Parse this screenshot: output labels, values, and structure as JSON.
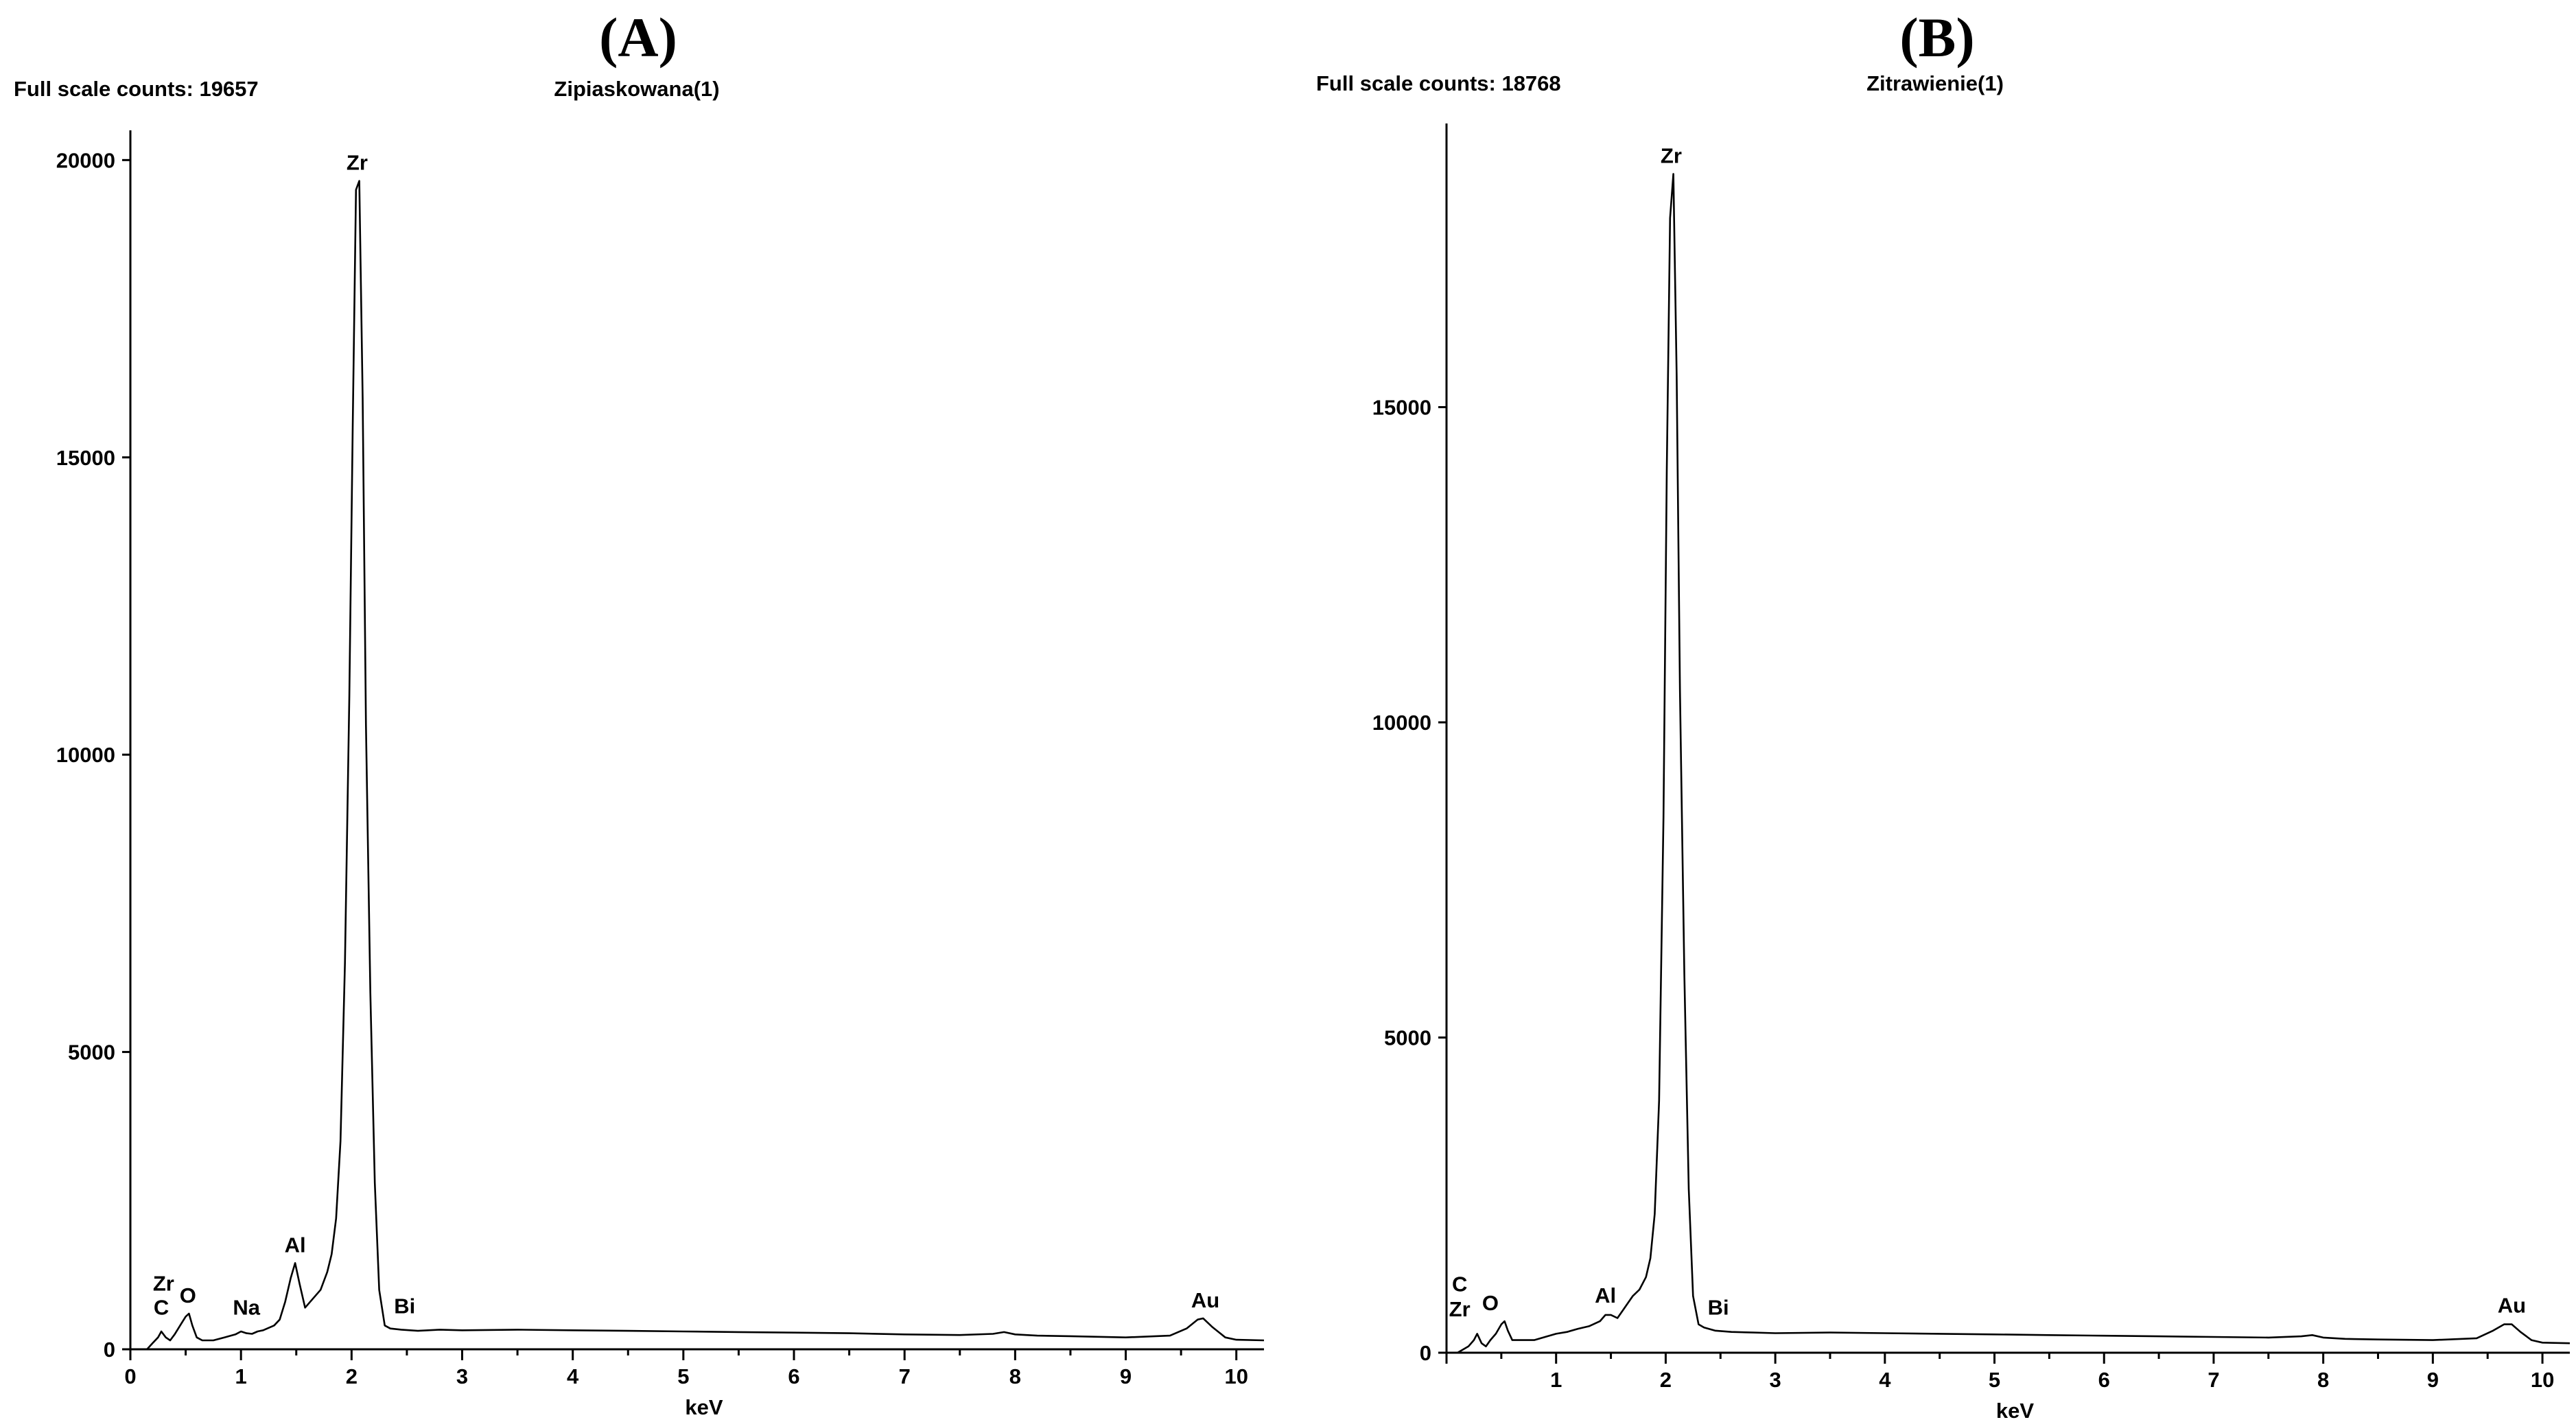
{
  "chart_data": [
    {
      "type": "line",
      "panel_label": "(A)",
      "header_left": "Full scale counts: 19657",
      "title": "Zipiaskowana(1)",
      "xlabel": "keV",
      "ylabel": "",
      "xlim": [
        0,
        10.25
      ],
      "ylim": [
        0,
        20500
      ],
      "xticks": [
        0,
        1,
        2,
        3,
        4,
        5,
        6,
        7,
        8,
        9,
        10
      ],
      "yticks": [
        0,
        5000,
        10000,
        15000,
        20000
      ],
      "x": [
        0.0,
        0.15,
        0.2,
        0.25,
        0.28,
        0.32,
        0.36,
        0.4,
        0.45,
        0.5,
        0.53,
        0.56,
        0.6,
        0.65,
        0.75,
        0.85,
        0.95,
        1.0,
        1.05,
        1.1,
        1.15,
        1.2,
        1.3,
        1.35,
        1.4,
        1.45,
        1.49,
        1.53,
        1.58,
        1.65,
        1.72,
        1.78,
        1.82,
        1.86,
        1.9,
        1.94,
        1.98,
        2.01,
        2.04,
        2.07,
        2.1,
        2.13,
        2.17,
        2.21,
        2.25,
        2.3,
        2.35,
        2.45,
        2.6,
        2.8,
        3.0,
        3.5,
        4.0,
        4.5,
        5.0,
        5.5,
        6.0,
        6.5,
        7.0,
        7.5,
        7.8,
        7.9,
        8.0,
        8.2,
        8.5,
        9.0,
        9.4,
        9.55,
        9.65,
        9.7,
        9.78,
        9.9,
        10.0,
        10.25
      ],
      "y": [
        0,
        0,
        100,
        200,
        300,
        200,
        150,
        250,
        400,
        550,
        600,
        400,
        200,
        150,
        150,
        200,
        250,
        300,
        270,
        260,
        300,
        320,
        400,
        500,
        800,
        1200,
        1450,
        1100,
        700,
        850,
        1000,
        1300,
        1600,
        2200,
        3500,
        6500,
        11000,
        15500,
        19500,
        19650,
        16000,
        10500,
        6000,
        2800,
        1000,
        400,
        350,
        330,
        310,
        330,
        320,
        330,
        320,
        310,
        300,
        290,
        280,
        270,
        250,
        240,
        260,
        290,
        250,
        230,
        220,
        200,
        230,
        350,
        500,
        520,
        380,
        200,
        160,
        150
      ],
      "annotations": [
        {
          "text": "Zr",
          "x": 2.05,
          "y": 19650
        },
        {
          "text": "Zr",
          "x": 0.3,
          "y": 800
        },
        {
          "text": "C",
          "x": 0.28,
          "y": 400
        },
        {
          "text": "O",
          "x": 0.52,
          "y": 600
        },
        {
          "text": "Na",
          "x": 1.05,
          "y": 400
        },
        {
          "text": "Al",
          "x": 1.49,
          "y": 1450
        },
        {
          "text": "Bi",
          "x": 2.48,
          "y": 420
        },
        {
          "text": "Au",
          "x": 9.72,
          "y": 520
        }
      ]
    },
    {
      "type": "line",
      "panel_label": "(B)",
      "header_left": "Full scale counts: 18768",
      "title": "Zitrawienie(1)",
      "xlabel": "keV",
      "ylabel": "",
      "xlim": [
        0,
        10.25
      ],
      "ylim": [
        0,
        19500
      ],
      "xticks": [
        1,
        2,
        3,
        4,
        5,
        6,
        7,
        8,
        9,
        10
      ],
      "yticks": [
        0,
        5000,
        10000,
        15000
      ],
      "x": [
        0.0,
        0.1,
        0.15,
        0.2,
        0.25,
        0.28,
        0.32,
        0.36,
        0.4,
        0.45,
        0.5,
        0.53,
        0.56,
        0.6,
        0.7,
        0.8,
        0.9,
        1.0,
        1.1,
        1.2,
        1.3,
        1.4,
        1.45,
        1.5,
        1.56,
        1.62,
        1.7,
        1.76,
        1.82,
        1.86,
        1.9,
        1.94,
        1.98,
        2.01,
        2.04,
        2.07,
        2.1,
        2.13,
        2.17,
        2.21,
        2.25,
        2.3,
        2.35,
        2.45,
        2.6,
        2.8,
        3.0,
        3.5,
        4.0,
        4.5,
        5.0,
        5.5,
        6.0,
        6.5,
        7.0,
        7.5,
        7.8,
        7.9,
        8.0,
        8.2,
        8.5,
        9.0,
        9.4,
        9.55,
        9.65,
        9.72,
        9.8,
        9.9,
        10.0,
        10.25
      ],
      "y": [
        0,
        0,
        50,
        100,
        200,
        300,
        150,
        100,
        200,
        300,
        450,
        500,
        350,
        200,
        200,
        200,
        250,
        300,
        330,
        380,
        420,
        500,
        600,
        600,
        550,
        700,
        900,
        1000,
        1200,
        1500,
        2200,
        4000,
        8500,
        14000,
        18000,
        18700,
        15500,
        10500,
        6000,
        2600,
        900,
        450,
        400,
        350,
        330,
        320,
        310,
        320,
        310,
        300,
        290,
        280,
        270,
        260,
        250,
        240,
        260,
        280,
        240,
        220,
        210,
        200,
        230,
        350,
        450,
        450,
        330,
        200,
        160,
        150
      ],
      "annotations": [
        {
          "text": "Zr",
          "x": 2.05,
          "y": 18700
        },
        {
          "text": "C",
          "x": 0.12,
          "y": 800
        },
        {
          "text": "Zr",
          "x": 0.12,
          "y": 400
        },
        {
          "text": "O",
          "x": 0.4,
          "y": 500
        },
        {
          "text": "Al",
          "x": 1.45,
          "y": 620
        },
        {
          "text": "Bi",
          "x": 2.48,
          "y": 430
        },
        {
          "text": "Au",
          "x": 9.72,
          "y": 460
        }
      ]
    }
  ]
}
